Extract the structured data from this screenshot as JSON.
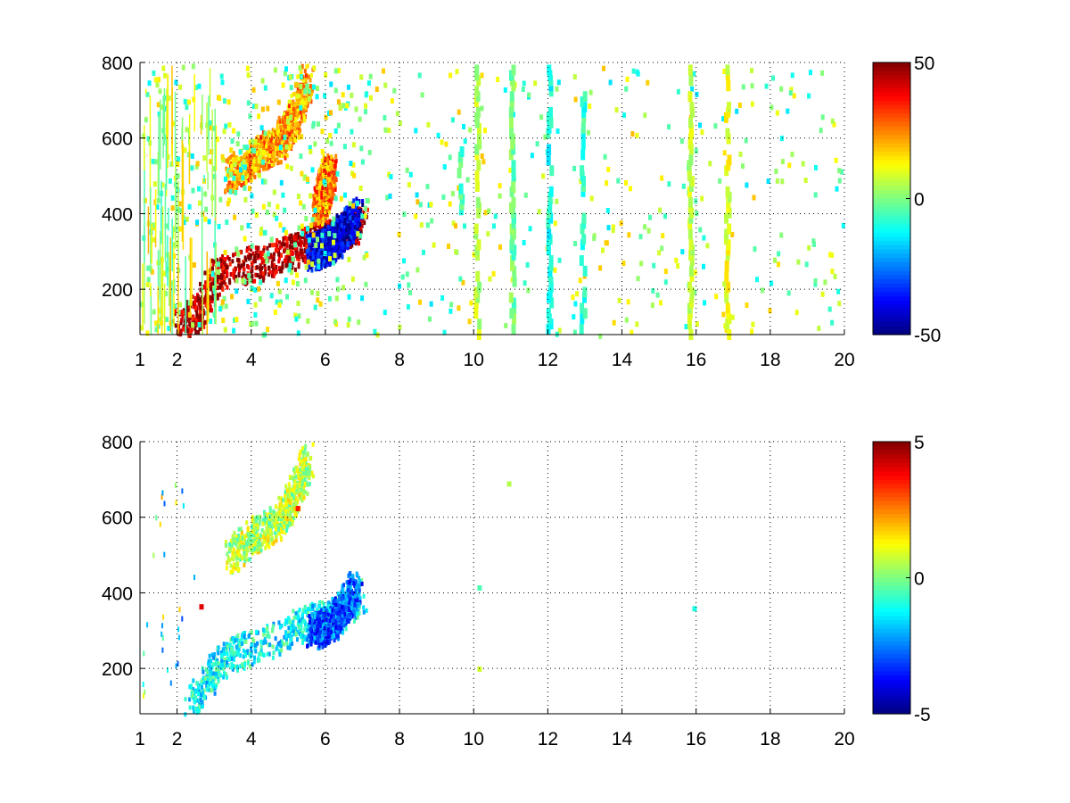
{
  "chart_data": [
    {
      "type": "heatmap",
      "title": "",
      "xlabel": "",
      "ylabel": "",
      "xlim": [
        1,
        20
      ],
      "ylim": [
        80,
        800
      ],
      "x_ticks": [
        1,
        2,
        4,
        6,
        8,
        10,
        12,
        14,
        16,
        18,
        20
      ],
      "y_ticks": [
        200,
        400,
        600,
        800
      ],
      "grid": true,
      "colormap": "jet",
      "clim": [
        -50,
        50
      ],
      "colorbar_ticks": [
        50,
        0,
        -50
      ],
      "structures": [
        {
          "name": "lower band",
          "path": [
            [
              2.0,
              100
            ],
            [
              2.6,
              150
            ],
            [
              3.1,
              250
            ],
            [
              4.0,
              270
            ],
            [
              5.0,
              300
            ],
            [
              5.6,
              330
            ],
            [
              6.3,
              350
            ],
            [
              7.0,
              380
            ]
          ],
          "value": 45
        },
        {
          "name": "upper band",
          "path": [
            [
              3.4,
              500
            ],
            [
              4.1,
              560
            ],
            [
              4.7,
              590
            ],
            [
              5.1,
              650
            ],
            [
              5.5,
              760
            ]
          ],
          "value": 22
        },
        {
          "name": "right blob",
          "path": [
            [
              5.6,
              300
            ],
            [
              6.2,
              330
            ],
            [
              6.8,
              400
            ]
          ],
          "value": -40
        },
        {
          "name": "left shoulder",
          "path": [
            [
              5.8,
              420
            ],
            [
              6.1,
              520
            ]
          ],
          "value": 25
        }
      ],
      "stripes": [
        {
          "x": 9.6,
          "y": [
            410,
            580
          ],
          "value": -4
        },
        {
          "x": 10.05,
          "y": [
            80,
            800
          ],
          "value": 5
        },
        {
          "x": 11.0,
          "y": [
            80,
            800
          ],
          "value": -2
        },
        {
          "x": 12.0,
          "y": [
            80,
            800
          ],
          "value": -10
        },
        {
          "x": 12.9,
          "y": [
            80,
            750
          ],
          "value": -8
        },
        {
          "x": 15.8,
          "y": [
            80,
            800
          ],
          "value": 6
        },
        {
          "x": 16.8,
          "y": [
            80,
            800
          ],
          "value": 10
        }
      ]
    },
    {
      "type": "heatmap",
      "title": "",
      "xlabel": "",
      "ylabel": "",
      "xlim": [
        1,
        20
      ],
      "ylim": [
        80,
        800
      ],
      "x_ticks": [
        1,
        2,
        4,
        6,
        8,
        10,
        12,
        14,
        16,
        18,
        20
      ],
      "y_ticks": [
        200,
        400,
        600,
        800
      ],
      "grid": true,
      "colormap": "jet",
      "clim": [
        -5,
        5
      ],
      "colorbar_ticks": [
        5,
        0,
        -5
      ],
      "structures": [
        {
          "name": "lower band",
          "path": [
            [
              2.3,
              100
            ],
            [
              2.8,
              170
            ],
            [
              3.3,
              240
            ],
            [
              4.0,
              260
            ],
            [
              5.0,
              300
            ],
            [
              5.6,
              330
            ],
            [
              6.3,
              350
            ],
            [
              7.0,
              400
            ]
          ],
          "value": -1.2
        },
        {
          "name": "upper band",
          "path": [
            [
              3.4,
              500
            ],
            [
              4.1,
              560
            ],
            [
              4.7,
              590
            ],
            [
              5.1,
              650
            ],
            [
              5.5,
              760
            ]
          ],
          "value": 0.6
        },
        {
          "name": "right blob",
          "path": [
            [
              5.6,
              300
            ],
            [
              6.2,
              330
            ],
            [
              6.8,
              420
            ]
          ],
          "value": -2.8
        }
      ],
      "specks": [
        {
          "x": 10.9,
          "y": 695,
          "value": 0.5
        },
        {
          "x": 10.1,
          "y": 420,
          "value": -0.5
        },
        {
          "x": 10.1,
          "y": 205,
          "value": 0.8
        },
        {
          "x": 15.9,
          "y": 365,
          "value": -1.0
        },
        {
          "x": 5.2,
          "y": 630,
          "value": 3.5
        },
        {
          "x": 2.6,
          "y": 370,
          "value": 4.0
        }
      ]
    }
  ]
}
